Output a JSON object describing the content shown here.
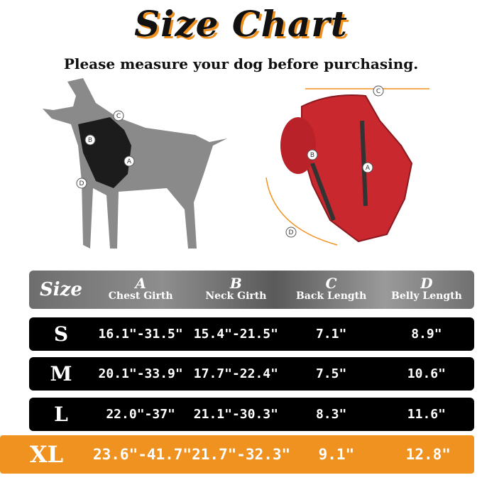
{
  "title": "Size Chart",
  "subtitle": "Please measure your dog before purchasing.",
  "markers": [
    "A",
    "B",
    "C",
    "D"
  ],
  "colors": {
    "accent": "#f0921f",
    "row_bg": "#000000",
    "header_bg": "#7a7a7a",
    "harness": "#c8282e",
    "dog": "#8a8a8a"
  },
  "table": {
    "size_label": "Size",
    "columns": [
      {
        "letter": "A",
        "label": "Chest Girth"
      },
      {
        "letter": "B",
        "label": "Neck Girth"
      },
      {
        "letter": "C",
        "label": "Back Length"
      },
      {
        "letter": "D",
        "label": "Belly Length"
      }
    ],
    "rows": [
      {
        "size": "S",
        "values": [
          "16.1\"-31.5\"",
          "15.4\"-21.5\"",
          "7.1\"",
          "8.9\""
        ]
      },
      {
        "size": "M",
        "values": [
          "20.1\"-33.9\"",
          "17.7\"-22.4\"",
          "7.5\"",
          "10.6\""
        ]
      },
      {
        "size": "L",
        "values": [
          "22.0\"-37\"",
          "21.1\"-30.3\"",
          "8.3\"",
          "11.6\""
        ]
      },
      {
        "size": "XL",
        "values": [
          "23.6\"-41.7\"",
          "21.7\"-32.3\"",
          "9.1\"",
          "12.8\""
        ],
        "highlighted": true
      }
    ]
  }
}
